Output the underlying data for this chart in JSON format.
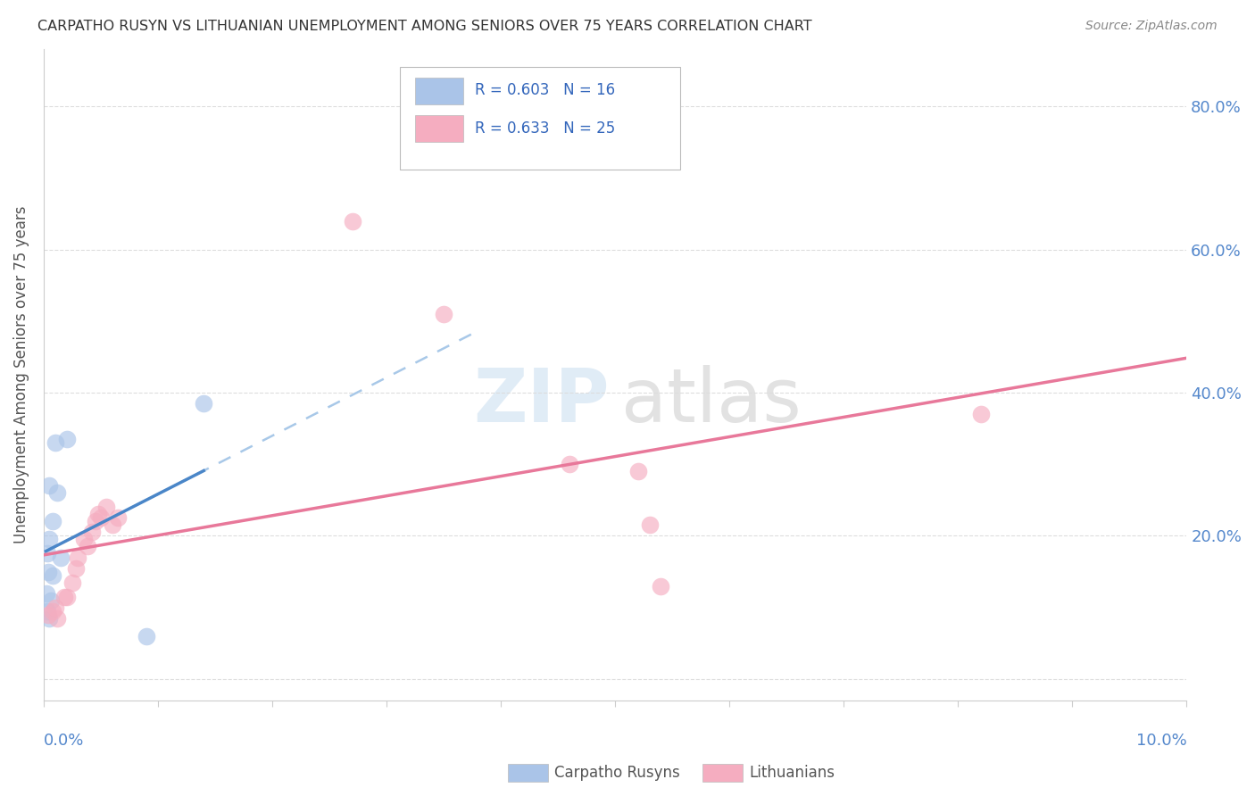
{
  "title": "CARPATHO RUSYN VS LITHUANIAN UNEMPLOYMENT AMONG SENIORS OVER 75 YEARS CORRELATION CHART",
  "source": "Source: ZipAtlas.com",
  "ylabel": "Unemployment Among Seniors over 75 years",
  "legend_blue_label": "R = 0.603   N = 16",
  "legend_pink_label": "R = 0.633   N = 25",
  "bottom_legend_blue": "Carpatho Rusyns",
  "bottom_legend_pink": "Lithuanians",
  "blue_color": "#aac4e8",
  "pink_color": "#f5adc0",
  "blue_line_color": "#4a86c8",
  "pink_line_color": "#e8789a",
  "dashed_line_color": "#a8c8e8",
  "blue_scatter": [
    [
      0.001,
      0.33
    ],
    [
      0.002,
      0.335
    ],
    [
      0.0005,
      0.27
    ],
    [
      0.0012,
      0.26
    ],
    [
      0.0008,
      0.22
    ],
    [
      0.0005,
      0.195
    ],
    [
      0.0003,
      0.175
    ],
    [
      0.0015,
      0.17
    ],
    [
      0.0004,
      0.15
    ],
    [
      0.0008,
      0.145
    ],
    [
      0.0002,
      0.12
    ],
    [
      0.0006,
      0.11
    ],
    [
      0.0003,
      0.095
    ],
    [
      0.0005,
      0.085
    ],
    [
      0.014,
      0.385
    ],
    [
      0.009,
      0.06
    ]
  ],
  "pink_scatter": [
    [
      0.0004,
      0.09
    ],
    [
      0.0008,
      0.095
    ],
    [
      0.0012,
      0.085
    ],
    [
      0.001,
      0.1
    ],
    [
      0.0018,
      0.115
    ],
    [
      0.002,
      0.115
    ],
    [
      0.0025,
      0.135
    ],
    [
      0.0028,
      0.155
    ],
    [
      0.003,
      0.17
    ],
    [
      0.0035,
      0.195
    ],
    [
      0.0038,
      0.185
    ],
    [
      0.0042,
      0.205
    ],
    [
      0.0045,
      0.22
    ],
    [
      0.0048,
      0.23
    ],
    [
      0.005,
      0.225
    ],
    [
      0.0055,
      0.24
    ],
    [
      0.006,
      0.215
    ],
    [
      0.0065,
      0.225
    ],
    [
      0.027,
      0.64
    ],
    [
      0.035,
      0.51
    ],
    [
      0.046,
      0.3
    ],
    [
      0.052,
      0.29
    ],
    [
      0.053,
      0.215
    ],
    [
      0.054,
      0.13
    ],
    [
      0.082,
      0.37
    ]
  ],
  "xlim": [
    0.0,
    0.1
  ],
  "ylim": [
    -0.03,
    0.88
  ],
  "x_ticks": [
    0.0,
    0.01,
    0.02,
    0.03,
    0.04,
    0.05,
    0.06,
    0.07,
    0.08,
    0.09,
    0.1
  ],
  "y_ticks": [
    0.0,
    0.2,
    0.4,
    0.6,
    0.8
  ],
  "y_tick_labels": [
    "",
    "20.0%",
    "40.0%",
    "60.0%",
    "80.0%"
  ],
  "figsize": [
    14.06,
    8.92
  ],
  "dpi": 100
}
